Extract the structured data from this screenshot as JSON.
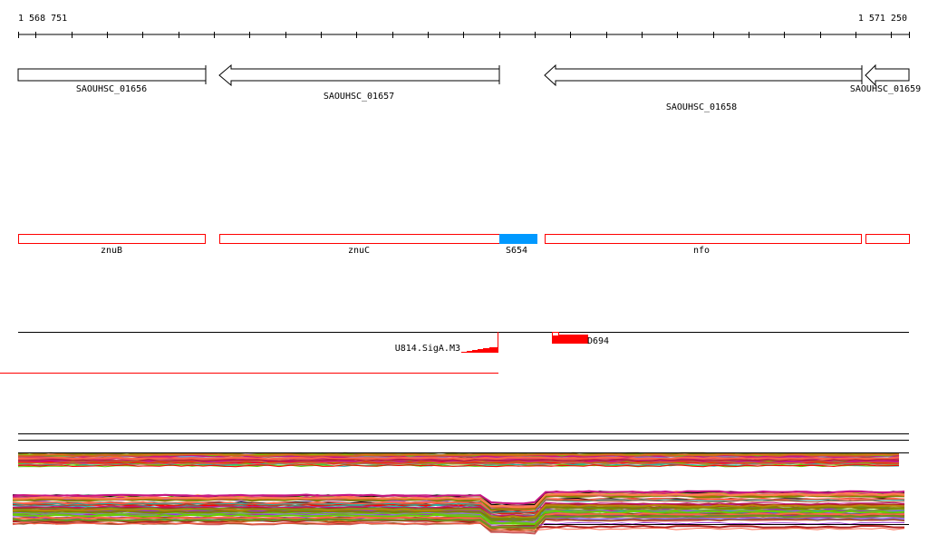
{
  "ruler": {
    "start_label": "1 568 751",
    "end_label": "1 571 250",
    "start": 1568751,
    "end": 1571250,
    "tick_step": 100
  },
  "genes": [
    {
      "label": "SAOUHSC_01656",
      "strand": "+"
    },
    {
      "label": "SAOUHSC_01657",
      "strand": "-"
    },
    {
      "label": "SAOUHSC_01658",
      "strand": "-"
    },
    {
      "label": "SAOUHSC_01659",
      "strand": "-"
    }
  ],
  "features": [
    {
      "label": "znuB",
      "color": "#ff0000"
    },
    {
      "label": "znuC",
      "color": "#ff0000"
    },
    {
      "label": "S654",
      "color": "#0099ff"
    },
    {
      "label": "nfo",
      "color": "#ff0000"
    },
    {
      "label": "",
      "color": "#ff0000"
    }
  ],
  "signals": {
    "promoter_label": "U814.SigA.M3",
    "terminator_label": "D694",
    "color": "#ff0000"
  },
  "profile_colors": [
    "#000000",
    "#8b4513",
    "#6b8e23",
    "#ff6347",
    "#9932cc",
    "#ff0000",
    "#66cc00",
    "#5fa8e0",
    "#b22222",
    "#c71585",
    "#d2691e",
    "#808000",
    "#ff7f50",
    "#a0522d",
    "#9370db",
    "#cd5c5c",
    "#20b2aa",
    "#b8860b"
  ]
}
